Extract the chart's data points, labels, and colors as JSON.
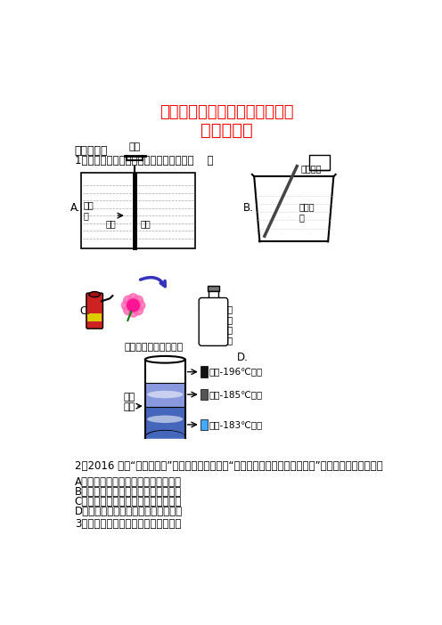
{
  "title1": "山东省菏泽市中考化学二模试题",
  "title2": "（含答案）",
  "title_color": "#FF0000",
  "section1": "一、单选题",
  "q1": "1．下列图中所示过程发生化学变化的是（    ）",
  "q2_text": "2．2016 年的“世界环境日”，中国确定的主题为“改善环境质量，推动绿色发展”。下列做法不可行的是",
  "q2_A": "A．扩大公共绿地面积，打造绿色家园",
  "q2_B": "B．禁止随意焚烧秸秆，减轻雾霾影响",
  "q2_C": "C．禁止使用化肥农药，防止水体污染",
  "q2_D": "D．发展公共交通设施，提倡低碳生活",
  "q3": "3．下列化学实验基本操作中错误的是",
  "label_A": "A.",
  "label_B": "B.",
  "label_C": "C.",
  "label_D": "D.",
  "jiaya_text": "加压",
  "buduan_text": "不断搅拌",
  "danhua_text": "淡化\n膜",
  "danshui_text": "淡水",
  "haishui_text": "海水",
  "sulfuric_text": "浓硫酸\n水",
  "co2_text": "二\n氧\n化\n碳",
  "spray_caption": "喷水后放入二氧化碳中",
  "liquid_air_text": "液态\n空气",
  "nitrogen_text1": "氮气-196℃沸腾",
  "nitrogen_text2": "氩气-185℃沸腾",
  "nitrogen_text3": "氧气-183℃沸腾",
  "bg_color": "#FFFFFF"
}
